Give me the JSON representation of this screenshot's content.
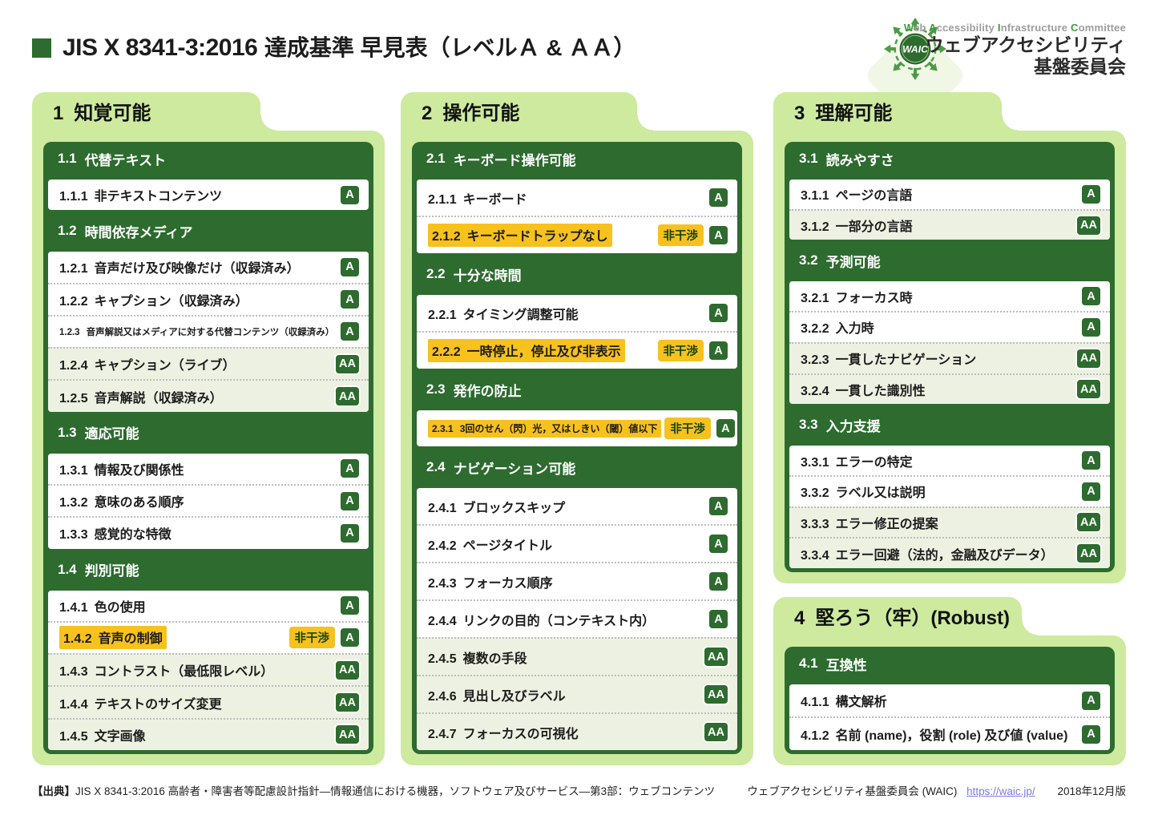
{
  "header": {
    "title_strong": "JIS X 8341-3:2016",
    "title_rest": "達成基準 早見表（レベルＡ & ＡＡ）"
  },
  "logo": {
    "badge_text": "WAIC",
    "en_line": "Web Accessibility Infrastructure Committee",
    "jp_line1": "ウェブアクセシビリティ",
    "jp_line2": "基盤委員会"
  },
  "badges": {
    "non_interference": "非干渉"
  },
  "colors": {
    "dark_green": "#2d6b2f",
    "light_green": "#cdea9e",
    "aa_row": "#edf1e2",
    "highlight_yellow": "#f7c11e",
    "link_blue": "#7b7be0"
  },
  "folders": [
    {
      "number": "1",
      "title": "知覚可能",
      "sections": [
        {
          "id": "1.1",
          "title": "代替テキスト",
          "items": [
            {
              "id": "1.1.1",
              "label": "非テキストコンテンツ",
              "level": "A"
            }
          ]
        },
        {
          "id": "1.2",
          "title": "時間依存メディア",
          "items": [
            {
              "id": "1.2.1",
              "label": "音声だけ及び映像だけ（収録済み）",
              "level": "A"
            },
            {
              "id": "1.2.2",
              "label": "キャプション（収録済み）",
              "level": "A"
            },
            {
              "id": "1.2.3",
              "label": "音声解説又はメディアに対する代替コンテンツ（収録済み）",
              "level": "A"
            },
            {
              "id": "1.2.4",
              "label": "キャプション（ライブ）",
              "level": "AA"
            },
            {
              "id": "1.2.5",
              "label": "音声解説（収録済み）",
              "level": "AA"
            }
          ]
        },
        {
          "id": "1.3",
          "title": "適応可能",
          "items": [
            {
              "id": "1.3.1",
              "label": "情報及び関係性",
              "level": "A"
            },
            {
              "id": "1.3.2",
              "label": "意味のある順序",
              "level": "A"
            },
            {
              "id": "1.3.3",
              "label": "感覚的な特徴",
              "level": "A"
            }
          ]
        },
        {
          "id": "1.4",
          "title": "判別可能",
          "items": [
            {
              "id": "1.4.1",
              "label": "色の使用",
              "level": "A"
            },
            {
              "id": "1.4.2",
              "label": "音声の制御",
              "level": "A",
              "non_interference": true,
              "highlight": true
            },
            {
              "id": "1.4.3",
              "label": "コントラスト（最低限レベル）",
              "level": "AA"
            },
            {
              "id": "1.4.4",
              "label": "テキストのサイズ変更",
              "level": "AA"
            },
            {
              "id": "1.4.5",
              "label": "文字画像",
              "level": "AA"
            }
          ]
        }
      ]
    },
    {
      "number": "2",
      "title": "操作可能",
      "sections": [
        {
          "id": "2.1",
          "title": "キーボード操作可能",
          "items": [
            {
              "id": "2.1.1",
              "label": "キーボード",
              "level": "A"
            },
            {
              "id": "2.1.2",
              "label": "キーボードトラップなし",
              "level": "A",
              "non_interference": true,
              "highlight": true
            }
          ]
        },
        {
          "id": "2.2",
          "title": "十分な時間",
          "items": [
            {
              "id": "2.2.1",
              "label": "タイミング調整可能",
              "level": "A"
            },
            {
              "id": "2.2.2",
              "label": "一時停止，停止及び非表示",
              "level": "A",
              "non_interference": true,
              "highlight": true
            }
          ]
        },
        {
          "id": "2.3",
          "title": "発作の防止",
          "items": [
            {
              "id": "2.3.1",
              "label": "3回のせん（閃）光，又はしきい（閾）値以下",
              "level": "A",
              "non_interference": true,
              "highlight": true
            }
          ]
        },
        {
          "id": "2.4",
          "title": "ナビゲーション可能",
          "items": [
            {
              "id": "2.4.1",
              "label": "ブロックスキップ",
              "level": "A"
            },
            {
              "id": "2.4.2",
              "label": "ページタイトル",
              "level": "A"
            },
            {
              "id": "2.4.3",
              "label": "フォーカス順序",
              "level": "A"
            },
            {
              "id": "2.4.4",
              "label": "リンクの目的（コンテキスト内）",
              "level": "A"
            },
            {
              "id": "2.4.5",
              "label": "複数の手段",
              "level": "AA"
            },
            {
              "id": "2.4.6",
              "label": "見出し及びラベル",
              "level": "AA"
            },
            {
              "id": "2.4.7",
              "label": "フォーカスの可視化",
              "level": "AA"
            }
          ]
        }
      ]
    },
    {
      "number": "3",
      "title": "理解可能",
      "sections": [
        {
          "id": "3.1",
          "title": "読みやすさ",
          "items": [
            {
              "id": "3.1.1",
              "label": "ページの言語",
              "level": "A"
            },
            {
              "id": "3.1.2",
              "label": "一部分の言語",
              "level": "AA"
            }
          ]
        },
        {
          "id": "3.2",
          "title": "予測可能",
          "items": [
            {
              "id": "3.2.1",
              "label": "フォーカス時",
              "level": "A"
            },
            {
              "id": "3.2.2",
              "label": "入力時",
              "level": "A"
            },
            {
              "id": "3.2.3",
              "label": "一貫したナビゲーション",
              "level": "AA"
            },
            {
              "id": "3.2.4",
              "label": "一貫した識別性",
              "level": "AA"
            }
          ]
        },
        {
          "id": "3.3",
          "title": "入力支援",
          "items": [
            {
              "id": "3.3.1",
              "label": "エラーの特定",
              "level": "A"
            },
            {
              "id": "3.3.2",
              "label": "ラベル又は説明",
              "level": "A"
            },
            {
              "id": "3.3.3",
              "label": "エラー修正の提案",
              "level": "AA"
            },
            {
              "id": "3.3.4",
              "label": "エラー回避（法的，金融及びデータ）",
              "level": "AA"
            }
          ]
        }
      ]
    },
    {
      "number": "4",
      "title": "堅ろう（牢）(Robust)",
      "sections": [
        {
          "id": "4.1",
          "title": "互換性",
          "items": [
            {
              "id": "4.1.1",
              "label": "構文解析",
              "level": "A"
            },
            {
              "id": "4.1.2",
              "label": "名前 (name)，役割 (role) 及び値 (value)",
              "level": "A"
            }
          ]
        }
      ]
    }
  ],
  "footer": {
    "source_label": "【出典】",
    "source_text": "JIS X 8341-3:2016 高齢者・障害者等配慮設計指針―情報通信における機器，ソフトウェア及びサービス―第3部：ウェブコンテンツ",
    "committee": "ウェブアクセシビリティ基盤委員会 (WAIC)",
    "link": "https://waic.jp/",
    "edition": "2018年12月版"
  }
}
